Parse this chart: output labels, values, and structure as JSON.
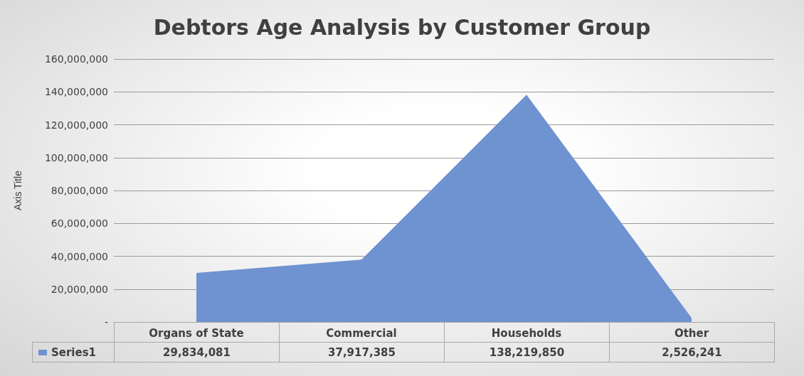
{
  "chart_data": {
    "type": "area",
    "title": "Debtors Age Analysis by Customer Group",
    "ylabel": "Axis Title",
    "categories": [
      "Organs of State",
      "Commercial",
      "Households",
      "Other"
    ],
    "series": [
      {
        "name": "Series1",
        "color": "#6f93d0",
        "values": [
          29834081,
          37917385,
          138219850,
          2526241
        ],
        "value_labels": [
          "29,834,081",
          "37,917,385",
          "138,219,850",
          "2,526,241"
        ]
      }
    ],
    "ylim": [
      0,
      160000000
    ],
    "yticks": [
      {
        "value": 0,
        "label": "-"
      },
      {
        "value": 20000000,
        "label": "20,000,000"
      },
      {
        "value": 40000000,
        "label": "40,000,000"
      },
      {
        "value": 60000000,
        "label": "60,000,000"
      },
      {
        "value": 80000000,
        "label": "80,000,000"
      },
      {
        "value": 100000000,
        "label": "100,000,000"
      },
      {
        "value": 120000000,
        "label": "120,000,000"
      },
      {
        "value": 140000000,
        "label": "140,000,000"
      },
      {
        "value": 160000000,
        "label": "160,000,000"
      }
    ],
    "grid": "y",
    "legend": "bottom"
  }
}
